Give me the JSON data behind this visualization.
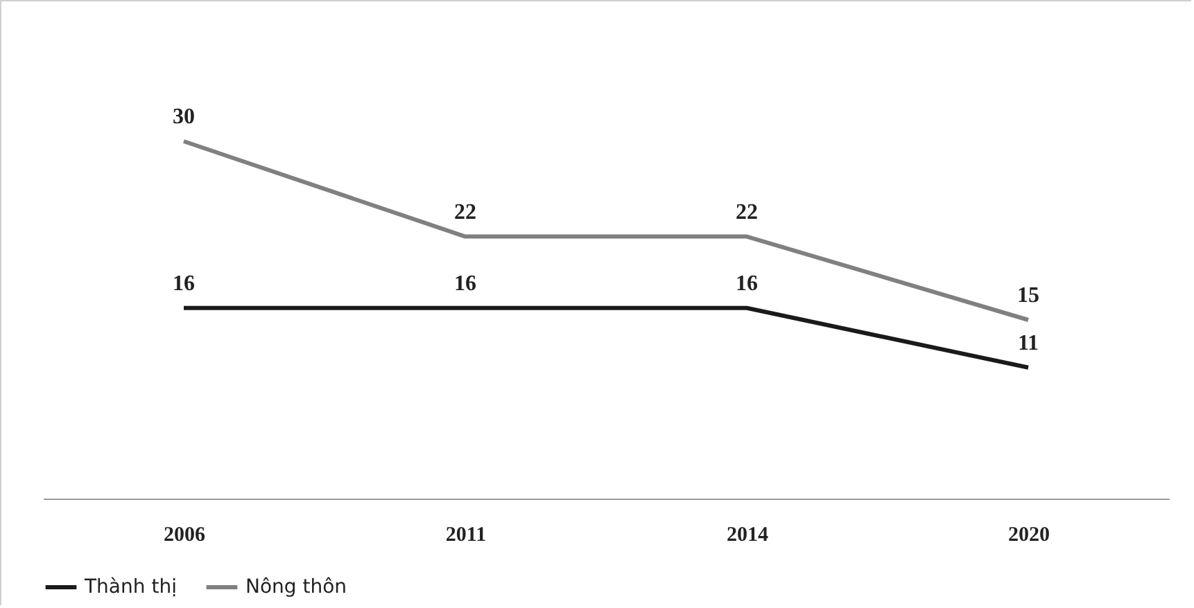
{
  "chart_data": {
    "type": "line",
    "categories": [
      "2006",
      "2011",
      "2014",
      "2020"
    ],
    "series": [
      {
        "name": "Thành thị",
        "color": "#1a1a1a",
        "values": [
          16,
          16,
          16,
          11
        ]
      },
      {
        "name": "Nông thôn",
        "color": "#808080",
        "values": [
          30,
          22,
          22,
          15
        ]
      }
    ],
    "data_labels": true,
    "legend": "bottom",
    "grid": false,
    "marker": "none",
    "line_style": "solid"
  }
}
